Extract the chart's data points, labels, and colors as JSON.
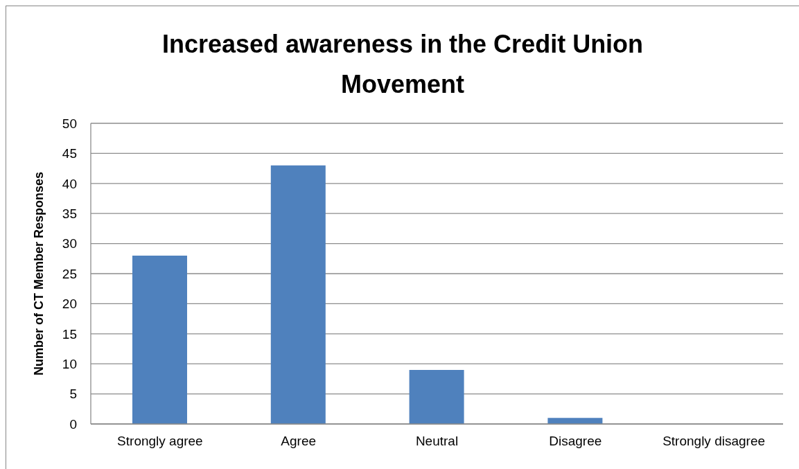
{
  "chart_data": {
    "type": "bar",
    "title": "Increased awareness in the Credit Union Movement",
    "ylabel": "Number of CT Member Responses",
    "categories": [
      "Strongly agree",
      "Agree",
      "Neutral",
      "Disagree",
      "Strongly disagree"
    ],
    "values": [
      28,
      43,
      9,
      1,
      0
    ],
    "color": "#4f81bd",
    "ylim": [
      0,
      50
    ],
    "yticks": [
      0,
      5,
      10,
      15,
      20,
      25,
      30,
      35,
      40,
      45,
      50
    ],
    "grid": "y"
  }
}
